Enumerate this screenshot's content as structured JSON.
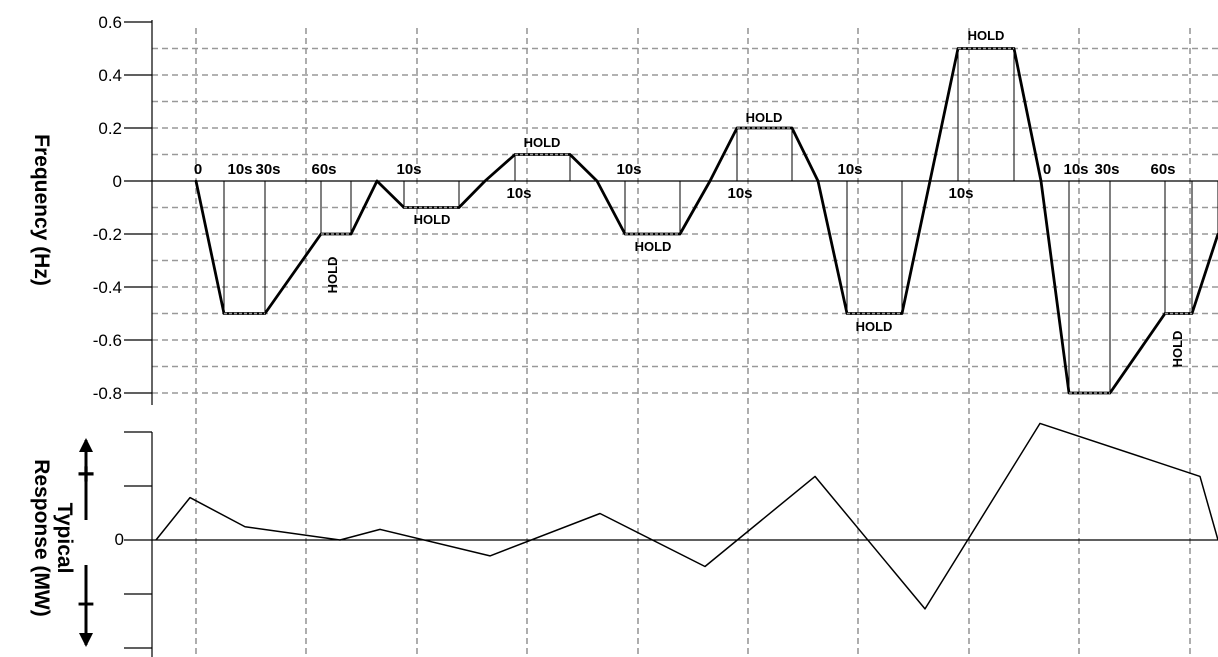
{
  "chart_data": [
    {
      "type": "line",
      "title": "",
      "ylabel": "Frequency (Hz)",
      "ylim": [
        -0.8,
        0.6
      ],
      "yticks": [
        "0.6",
        "0.4",
        "0.2",
        "0",
        "-0.2",
        "-0.4",
        "-0.6",
        "-0.8"
      ],
      "grid": true,
      "series": [
        {
          "values": [
            [
              0,
              0
            ],
            [
              1,
              -0.5
            ],
            [
              2,
              -0.5
            ],
            [
              3,
              -0.2
            ],
            [
              4,
              -0.2
            ],
            [
              5,
              0
            ],
            [
              6,
              -0.1
            ],
            [
              7,
              -0.1
            ],
            [
              8,
              0
            ],
            [
              9,
              0.1
            ],
            [
              10,
              0.1
            ],
            [
              11,
              0
            ],
            [
              12,
              -0.2
            ],
            [
              13,
              -0.2
            ],
            [
              14,
              0
            ],
            [
              15,
              0.2
            ],
            [
              16,
              0.2
            ],
            [
              17,
              0
            ],
            [
              18,
              -0.5
            ],
            [
              19,
              -0.5
            ],
            [
              20,
              0
            ],
            [
              21,
              0.5
            ],
            [
              22,
              0.5
            ],
            [
              23,
              0
            ],
            [
              24,
              -0.8
            ],
            [
              25,
              -0.8
            ],
            [
              26,
              -0.5
            ],
            [
              27,
              -0.5
            ],
            [
              28,
              -0.2
            ]
          ]
        }
      ],
      "time_labels": [
        "0",
        "10s",
        "30s",
        "60s",
        "10s",
        "10s",
        "10s",
        "10s",
        "10s",
        "10s",
        "0",
        "10s",
        "30s",
        "60s"
      ],
      "hold_label": "HOLD"
    },
    {
      "type": "line",
      "title": "",
      "ylabel_line1": "Typical",
      "ylabel_line2": "Response (MW)",
      "sign_labels": [
        "+",
        "0",
        "–"
      ],
      "series": [
        {
          "values": [
            [
              0,
              0
            ],
            [
              1,
              0.8
            ],
            [
              2,
              0.25
            ],
            [
              3,
              0
            ],
            [
              4,
              0.2
            ],
            [
              5,
              -0.3
            ],
            [
              6,
              0.5
            ],
            [
              7,
              -0.5
            ],
            [
              8,
              1.2
            ],
            [
              9,
              -1.3
            ],
            [
              10,
              2.2
            ],
            [
              11,
              1.2
            ],
            [
              12,
              0
            ]
          ]
        }
      ]
    }
  ]
}
